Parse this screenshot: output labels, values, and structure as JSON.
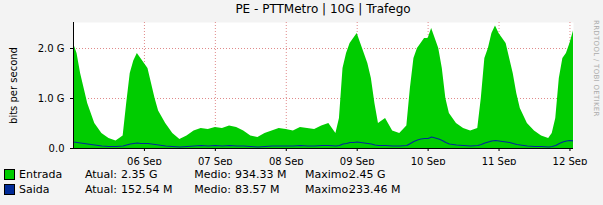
{
  "chart_data": {
    "type": "area",
    "title": "PE - PTTMetro | 10G | Trafego",
    "y_label": "bits per second",
    "annotations": [
      "RRDTOOL / TOBI OETIKER"
    ],
    "x": [
      5.0,
      5.05,
      5.1,
      5.2,
      5.3,
      5.4,
      5.5,
      5.6,
      5.7,
      5.75,
      5.8,
      5.85,
      5.9,
      5.95,
      6.0,
      6.05,
      6.1,
      6.15,
      6.2,
      6.3,
      6.4,
      6.5,
      6.6,
      6.7,
      6.8,
      6.9,
      7.0,
      7.1,
      7.2,
      7.3,
      7.4,
      7.5,
      7.6,
      7.7,
      7.8,
      7.9,
      8.0,
      8.1,
      8.2,
      8.3,
      8.4,
      8.5,
      8.6,
      8.7,
      8.75,
      8.8,
      8.85,
      8.9,
      8.95,
      9.0,
      9.05,
      9.1,
      9.15,
      9.2,
      9.25,
      9.3,
      9.4,
      9.5,
      9.6,
      9.7,
      9.75,
      9.8,
      9.85,
      9.9,
      9.95,
      10.0,
      10.05,
      10.1,
      10.15,
      10.2,
      10.25,
      10.3,
      10.4,
      10.5,
      10.6,
      10.7,
      10.75,
      10.8,
      10.85,
      10.9,
      10.95,
      11.0,
      11.05,
      11.1,
      11.15,
      11.2,
      11.25,
      11.3,
      11.4,
      11.5,
      11.6,
      11.7,
      11.75,
      11.8,
      11.85,
      11.9,
      11.95,
      12.0,
      12.05
    ],
    "series": [
      {
        "name": "Entrada",
        "type": "area",
        "color": "#00cc00",
        "values": [
          2.1,
          1.9,
          1.5,
          0.9,
          0.5,
          0.3,
          0.2,
          0.15,
          0.25,
          0.9,
          1.5,
          1.75,
          1.9,
          1.8,
          1.7,
          1.6,
          1.3,
          1.0,
          0.75,
          0.5,
          0.3,
          0.18,
          0.25,
          0.35,
          0.4,
          0.38,
          0.42,
          0.4,
          0.45,
          0.42,
          0.35,
          0.25,
          0.22,
          0.3,
          0.35,
          0.4,
          0.38,
          0.35,
          0.42,
          0.4,
          0.38,
          0.45,
          0.5,
          0.3,
          0.6,
          1.6,
          1.9,
          2.1,
          2.2,
          2.3,
          2.1,
          1.9,
          1.7,
          1.4,
          0.9,
          0.5,
          0.6,
          0.35,
          0.3,
          0.45,
          1.2,
          1.8,
          2.0,
          2.1,
          2.2,
          2.2,
          2.4,
          2.2,
          2.0,
          1.6,
          1.0,
          0.7,
          0.5,
          0.4,
          0.35,
          0.4,
          1.0,
          1.8,
          2.0,
          2.3,
          2.45,
          2.3,
          2.2,
          2.1,
          1.8,
          1.5,
          1.1,
          0.8,
          0.5,
          0.35,
          0.25,
          0.2,
          0.3,
          0.6,
          1.4,
          1.8,
          1.9,
          2.1,
          2.35
        ],
        "stats": [
          {
            "label": "Atual:",
            "value": "2.35 G"
          },
          {
            "label": "Medio:",
            "value": "934.33 M"
          },
          {
            "label": "Maximo:",
            "value": "2.45 G"
          }
        ]
      },
      {
        "name": "Saida",
        "type": "line",
        "color": "#002a97",
        "values": [
          0.13,
          0.12,
          0.11,
          0.09,
          0.07,
          0.05,
          0.04,
          0.04,
          0.05,
          0.07,
          0.09,
          0.1,
          0.11,
          0.1,
          0.1,
          0.1,
          0.09,
          0.08,
          0.07,
          0.05,
          0.04,
          0.03,
          0.04,
          0.05,
          0.06,
          0.05,
          0.06,
          0.05,
          0.06,
          0.05,
          0.05,
          0.04,
          0.03,
          0.04,
          0.05,
          0.05,
          0.05,
          0.05,
          0.06,
          0.05,
          0.05,
          0.06,
          0.06,
          0.05,
          0.06,
          0.09,
          0.1,
          0.12,
          0.12,
          0.13,
          0.12,
          0.11,
          0.1,
          0.09,
          0.07,
          0.06,
          0.06,
          0.05,
          0.05,
          0.06,
          0.1,
          0.14,
          0.17,
          0.19,
          0.2,
          0.2,
          0.23,
          0.21,
          0.19,
          0.16,
          0.12,
          0.09,
          0.07,
          0.06,
          0.05,
          0.06,
          0.08,
          0.11,
          0.13,
          0.15,
          0.16,
          0.15,
          0.14,
          0.13,
          0.12,
          0.1,
          0.08,
          0.07,
          0.05,
          0.04,
          0.04,
          0.03,
          0.04,
          0.06,
          0.1,
          0.13,
          0.15,
          0.16,
          0.15
        ],
        "stats": [
          {
            "label": "Atual:",
            "value": "152.54 M"
          },
          {
            "label": "Medio:",
            "value": "83.57 M"
          },
          {
            "label": "Maximo:",
            "value": "233.46 M"
          }
        ]
      }
    ],
    "xlim": [
      5.0,
      12.05
    ],
    "xticks": [
      {
        "value": 6,
        "label": "06 Sep"
      },
      {
        "value": 7,
        "label": "07 Sep"
      },
      {
        "value": 8,
        "label": "08 Sep"
      },
      {
        "value": 9,
        "label": "09 Sep"
      },
      {
        "value": 10,
        "label": "10 Sep"
      },
      {
        "value": 11,
        "label": "11 Sep"
      },
      {
        "value": 12,
        "label": "12 Sep"
      }
    ],
    "ylim": [
      0,
      2.52
    ],
    "yticks": [
      {
        "value": 0,
        "label": "0.0"
      },
      {
        "value": 1,
        "label": "1.0 G"
      },
      {
        "value": 2,
        "label": "2.0 G"
      }
    ],
    "grid": true,
    "legend": "bottom-left"
  }
}
